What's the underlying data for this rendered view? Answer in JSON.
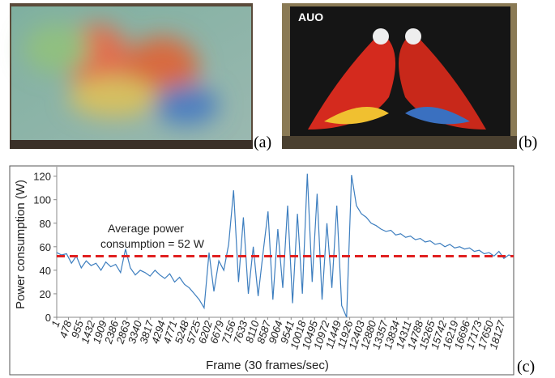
{
  "panels": [
    "(a)",
    "(b)",
    "(c)"
  ],
  "chart_data": {
    "type": "line",
    "ylabel": "Power consumption (W)",
    "xlabel": "Frame (30 frames/sec)",
    "annotation": [
      "Average power",
      "consumption = 52 W"
    ],
    "reference_line": {
      "value": 52,
      "color": "#e02020",
      "style": "dashed"
    },
    "color": "#3d7ebf",
    "xlim": [
      1,
      18600
    ],
    "ylim": [
      0,
      128
    ],
    "yticks": [
      0,
      20,
      40,
      60,
      80,
      100,
      120
    ],
    "xticks": [
      1,
      478,
      955,
      1432,
      1909,
      2386,
      2863,
      3340,
      3817,
      4294,
      4771,
      5248,
      5725,
      6202,
      6679,
      7156,
      7633,
      8110,
      8587,
      9064,
      9541,
      10018,
      10495,
      10972,
      11449,
      11926,
      12403,
      12880,
      13357,
      13834,
      14311,
      14788,
      15265,
      15742,
      16219,
      16696,
      17173,
      17650,
      18127
    ],
    "x": [
      1,
      200,
      400,
      600,
      800,
      1000,
      1200,
      1400,
      1600,
      1800,
      2000,
      2200,
      2400,
      2600,
      2800,
      3000,
      3200,
      3400,
      3600,
      3800,
      4000,
      4200,
      4400,
      4600,
      4800,
      5000,
      5200,
      5400,
      5600,
      5800,
      6000,
      6200,
      6400,
      6600,
      6800,
      7000,
      7200,
      7400,
      7600,
      7800,
      8000,
      8200,
      8400,
      8600,
      8800,
      9000,
      9200,
      9400,
      9600,
      9800,
      10000,
      10200,
      10400,
      10600,
      10800,
      11000,
      11200,
      11400,
      11600,
      11800,
      12000,
      12200,
      12400,
      12600,
      12800,
      13000,
      13200,
      13400,
      13600,
      13800,
      14000,
      14200,
      14400,
      14600,
      14800,
      15000,
      15200,
      15400,
      15600,
      15800,
      16000,
      16200,
      16400,
      16600,
      16800,
      17000,
      17200,
      17400,
      17600,
      17800,
      18000,
      18200,
      18400,
      18600
    ],
    "values": [
      55,
      53,
      54,
      46,
      52,
      42,
      48,
      44,
      46,
      40,
      47,
      43,
      45,
      38,
      58,
      42,
      36,
      40,
      38,
      35,
      40,
      36,
      33,
      37,
      30,
      34,
      28,
      25,
      20,
      15,
      8,
      55,
      22,
      48,
      40,
      62,
      108,
      30,
      85,
      20,
      60,
      18,
      55,
      90,
      15,
      75,
      25,
      95,
      12,
      88,
      20,
      122,
      30,
      105,
      15,
      80,
      25,
      95,
      10,
      0,
      121,
      95,
      88,
      85,
      80,
      78,
      75,
      73,
      74,
      70,
      71,
      68,
      69,
      66,
      67,
      64,
      65,
      62,
      63,
      60,
      62,
      59,
      60,
      58,
      59,
      56,
      57,
      54,
      55,
      52,
      56,
      50,
      53,
      52
    ]
  }
}
